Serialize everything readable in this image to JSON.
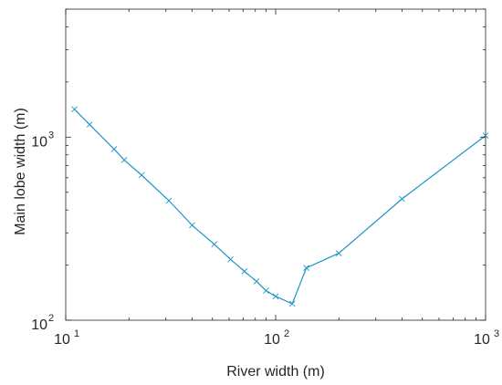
{
  "chart_data": {
    "type": "line",
    "xlabel": "River width (m)",
    "ylabel": "Main lobe width (m)",
    "xscale": "log",
    "yscale": "log",
    "xlim": [
      10,
      1000
    ],
    "ylim": [
      100,
      5000
    ],
    "grid": false,
    "legend": "none",
    "x_ticks": [
      {
        "base": "10",
        "exp": "1",
        "value": 10
      },
      {
        "base": "10",
        "exp": "2",
        "value": 100
      },
      {
        "base": "10",
        "exp": "3",
        "value": 1000
      }
    ],
    "y_ticks": [
      {
        "base": "10",
        "exp": "2",
        "value": 100
      },
      {
        "base": "10",
        "exp": "3",
        "value": 1000
      }
    ],
    "series": [
      {
        "color": "#1f94c8",
        "x": [
          11,
          13,
          17,
          19,
          23,
          31,
          40,
          51,
          61,
          71,
          81,
          90,
          100,
          120,
          140,
          200,
          400,
          1000
        ],
        "y": [
          1420,
          1170,
          860,
          750,
          620,
          450,
          330,
          260,
          215,
          185,
          163,
          145,
          135,
          123,
          193,
          232,
          460,
          1020
        ],
        "markers": [
          true,
          true,
          true,
          true,
          true,
          true,
          true,
          true,
          true,
          true,
          true,
          true,
          true,
          true,
          true,
          true,
          true,
          true
        ]
      }
    ]
  }
}
